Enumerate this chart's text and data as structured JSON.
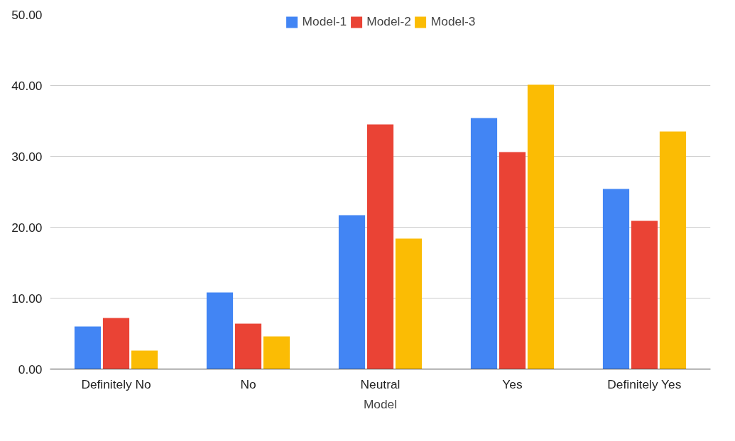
{
  "chart_data": {
    "type": "bar",
    "xlabel": "Model",
    "categories": [
      "Definitely No",
      "No",
      "Neutral",
      "Yes",
      "Definitely Yes"
    ],
    "series": [
      {
        "name": "Model-1",
        "color": "#4285f4",
        "values": [
          6.0,
          10.8,
          21.7,
          35.4,
          25.4
        ]
      },
      {
        "name": "Model-2",
        "color": "#ea4335",
        "values": [
          7.2,
          6.4,
          34.5,
          30.6,
          20.9
        ]
      },
      {
        "name": "Model-3",
        "color": "#fbbc04",
        "values": [
          2.6,
          4.6,
          18.4,
          40.1,
          33.5
        ]
      }
    ],
    "ylim": [
      0,
      50
    ],
    "yticks": [
      {
        "value": 0,
        "label": "0.00"
      },
      {
        "value": 10,
        "label": "10.00"
      },
      {
        "value": 20,
        "label": "20.00"
      },
      {
        "value": 30,
        "label": "30.00"
      },
      {
        "value": 40,
        "label": "40.00"
      },
      {
        "value": 50,
        "label": "50.00"
      }
    ],
    "grid": "y",
    "legend": "top"
  }
}
